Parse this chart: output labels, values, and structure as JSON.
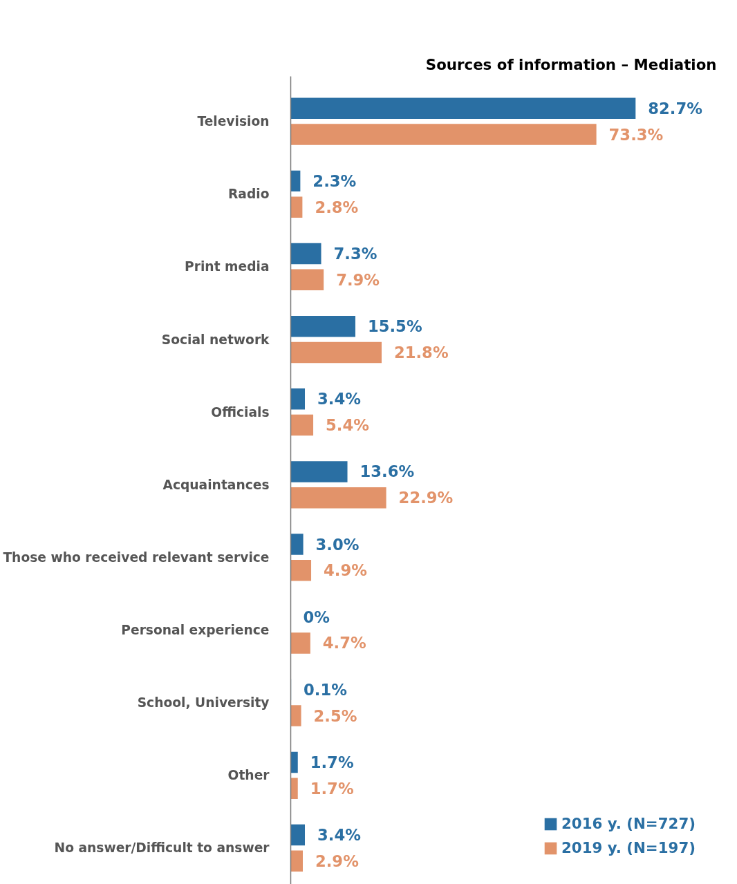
{
  "chart_data": {
    "type": "bar",
    "orientation": "horizontal",
    "title": "Sources of information – Mediation",
    "categories": [
      "Television",
      "Radio",
      "Print media",
      "Social network",
      "Officials",
      "Acquaintances",
      "Those who received relevant service",
      "Personal experience",
      "School, University",
      "Other",
      "No answer/Difficult to answer"
    ],
    "series": [
      {
        "name": "2016 y. (N=727)",
        "color": "#2a6fa3",
        "values": [
          82.7,
          2.3,
          7.3,
          15.5,
          3.4,
          13.6,
          3.0,
          0,
          0.1,
          1.7,
          3.4
        ],
        "value_labels": [
          "82.7%",
          "2.3%",
          "7.3%",
          "15.5%",
          "3.4%",
          "13.6%",
          "3.0%",
          "0%",
          "0.1%",
          "1.7%",
          "3.4%"
        ]
      },
      {
        "name": "2019 y. (N=197)",
        "color": "#e2936a",
        "values": [
          73.3,
          2.8,
          7.9,
          21.8,
          5.4,
          22.9,
          4.9,
          4.7,
          2.5,
          1.7,
          2.9
        ],
        "value_labels": [
          "73.3%",
          "2.8%",
          "7.9%",
          "21.8%",
          "5.4%",
          "22.9%",
          "4.9%",
          "4.7%",
          "2.5%",
          "1.7%",
          "2.9%"
        ]
      }
    ],
    "legend": "bottom right",
    "grid": false,
    "tick_labels": "y"
  }
}
